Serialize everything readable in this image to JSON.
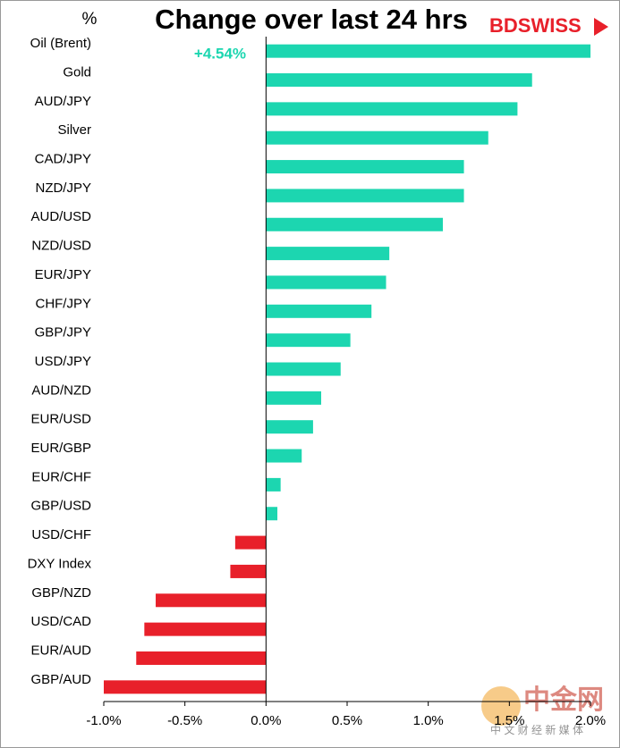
{
  "chart_data": {
    "type": "barh",
    "title": "Change over last 24 hrs",
    "unit_label": "%",
    "logo": "BDSWISS",
    "watermark": "中金网",
    "watermark_sub": "中 文 财 经 新 媒 体",
    "categories": [
      "Oil (Brent)",
      "Gold",
      "AUD/JPY",
      "Silver",
      "CAD/JPY",
      "NZD/JPY",
      "AUD/USD",
      "NZD/USD",
      "EUR/JPY",
      "CHF/JPY",
      "GBP/JPY",
      "USD/JPY",
      "AUD/NZD",
      "EUR/USD",
      "EUR/GBP",
      "EUR/CHF",
      "GBP/USD",
      "USD/CHF",
      "DXY Index",
      "GBP/NZD",
      "USD/CAD",
      "EUR/AUD",
      "GBP/AUD"
    ],
    "values": [
      4.54,
      1.64,
      1.55,
      1.37,
      1.22,
      1.22,
      1.09,
      0.76,
      0.74,
      0.65,
      0.52,
      0.46,
      0.34,
      0.29,
      0.22,
      0.09,
      0.07,
      -0.19,
      -0.22,
      -0.68,
      -0.75,
      -0.8,
      -1.0
    ],
    "value_labels": [
      "+4.54%",
      null,
      null,
      null,
      null,
      null,
      null,
      null,
      null,
      null,
      null,
      null,
      null,
      null,
      null,
      null,
      null,
      null,
      null,
      null,
      null,
      null,
      null
    ],
    "positive_color": "#1cd6b0",
    "negative_color": "#e8202a",
    "xlim": [
      -1,
      2
    ],
    "xticks": [
      {
        "value": -1,
        "label": "-1.0%"
      },
      {
        "value": -0.5,
        "label": "-0.5%"
      },
      {
        "value": 0,
        "label": "0.0%"
      },
      {
        "value": 0.5,
        "label": "0.5%"
      },
      {
        "value": 1,
        "label": "1.0%"
      },
      {
        "value": 1.5,
        "label": "1.5%"
      },
      {
        "value": 2,
        "label": "2.0%"
      }
    ]
  }
}
